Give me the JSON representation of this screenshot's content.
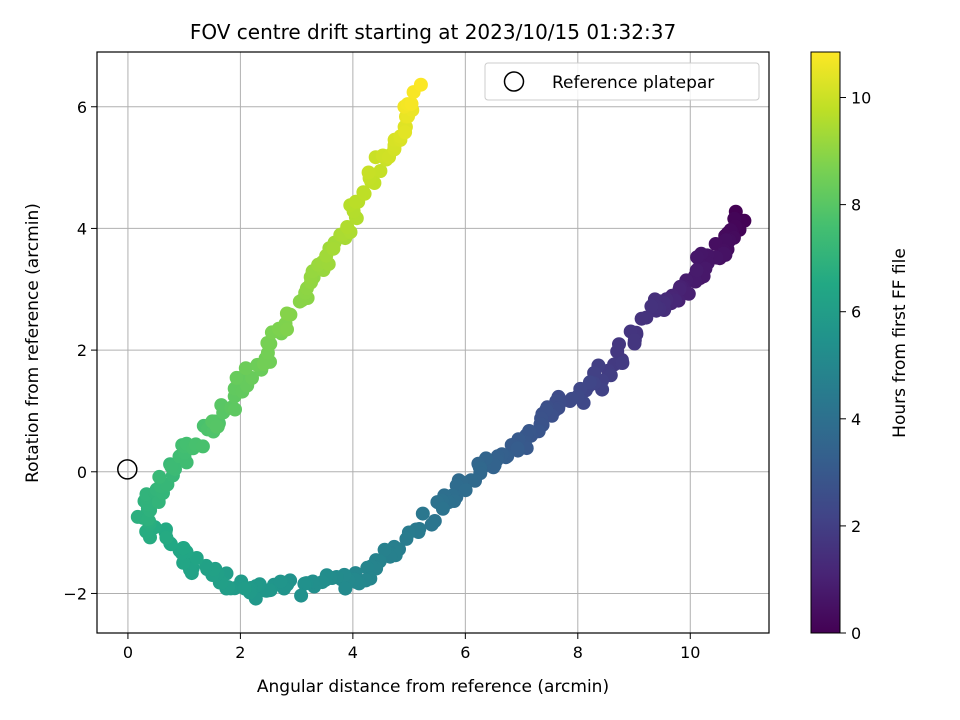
{
  "chart_data": {
    "type": "scatter",
    "title": "FOV centre drift starting at 2023/10/15 01:32:37",
    "xlabel": "Angular distance from reference (arcmin)",
    "ylabel": "Rotation from reference (arcmin)",
    "xlim": [
      -0.55,
      11.4
    ],
    "ylim": [
      -2.65,
      6.9
    ],
    "xticks": [
      0,
      2,
      4,
      6,
      8,
      10
    ],
    "yticks": [
      -2,
      0,
      2,
      4,
      6
    ],
    "xtick_labels": [
      "0",
      "2",
      "4",
      "6",
      "8",
      "10"
    ],
    "ytick_labels": [
      "−2",
      "0",
      "2",
      "4",
      "6"
    ],
    "grid": true,
    "legend": {
      "position": "top-right",
      "entries": [
        {
          "label": "Reference platepar",
          "marker": "open-circle"
        }
      ]
    },
    "reference_point": {
      "x": 0,
      "y": 0
    },
    "colorbar": {
      "label": "Hours from first FF file",
      "colormap": "viridis",
      "range": [
        0,
        10.85
      ],
      "ticks": [
        0,
        2,
        4,
        6,
        8,
        10
      ],
      "tick_labels": [
        "0",
        "2",
        "4",
        "6",
        "8",
        "10"
      ]
    },
    "color_encoding": "hours",
    "path_anchors": [
      {
        "hours": 0.0,
        "x": 10.85,
        "y": 4.25
      },
      {
        "hours": 0.3,
        "x": 10.75,
        "y": 3.8
      },
      {
        "hours": 0.6,
        "x": 10.4,
        "y": 3.5
      },
      {
        "hours": 0.8,
        "x": 10.0,
        "y": 3.15
      },
      {
        "hours": 1.2,
        "x": 9.6,
        "y": 2.75
      },
      {
        "hours": 1.5,
        "x": 9.35,
        "y": 2.75
      },
      {
        "hours": 1.8,
        "x": 8.75,
        "y": 1.8
      },
      {
        "hours": 2.3,
        "x": 8.0,
        "y": 1.3
      },
      {
        "hours": 2.7,
        "x": 7.4,
        "y": 0.9
      },
      {
        "hours": 3.1,
        "x": 6.9,
        "y": 0.4
      },
      {
        "hours": 3.6,
        "x": 6.3,
        "y": 0.0
      },
      {
        "hours": 4.0,
        "x": 5.7,
        "y": -0.5
      },
      {
        "hours": 4.6,
        "x": 4.8,
        "y": -1.2
      },
      {
        "hours": 4.9,
        "x": 4.3,
        "y": -1.7
      },
      {
        "hours": 5.2,
        "x": 3.6,
        "y": -1.8
      },
      {
        "hours": 5.6,
        "x": 2.7,
        "y": -1.9
      },
      {
        "hours": 5.9,
        "x": 2.0,
        "y": -1.9
      },
      {
        "hours": 6.2,
        "x": 1.3,
        "y": -1.6
      },
      {
        "hours": 6.5,
        "x": 0.8,
        "y": -1.2
      },
      {
        "hours": 6.8,
        "x": 0.25,
        "y": -0.7
      },
      {
        "hours": 7.1,
        "x": 0.5,
        "y": -0.3
      },
      {
        "hours": 7.5,
        "x": 1.0,
        "y": 0.3
      },
      {
        "hours": 7.9,
        "x": 1.6,
        "y": 0.8
      },
      {
        "hours": 8.3,
        "x": 2.1,
        "y": 1.5
      },
      {
        "hours": 8.7,
        "x": 2.7,
        "y": 2.3
      },
      {
        "hours": 9.1,
        "x": 3.3,
        "y": 3.2
      },
      {
        "hours": 9.5,
        "x": 3.9,
        "y": 4.0
      },
      {
        "hours": 9.9,
        "x": 4.4,
        "y": 4.9
      },
      {
        "hours": 10.3,
        "x": 4.85,
        "y": 5.6
      },
      {
        "hours": 10.85,
        "x": 5.2,
        "y": 6.3
      }
    ]
  }
}
